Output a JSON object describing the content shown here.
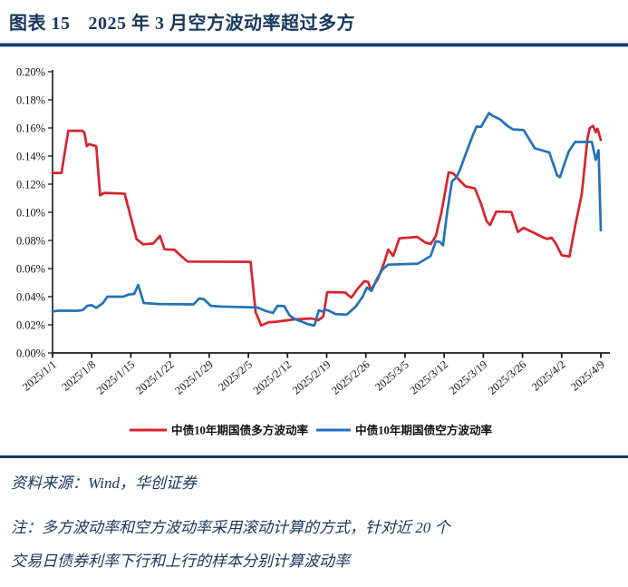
{
  "header": {
    "caption_label": "图表 15",
    "caption_title": "2025 年 3 月空方波动率超过多方"
  },
  "colors": {
    "title_navy": "#17375E",
    "rule_dark": "#1F3864",
    "rule_light": "#8FAADC",
    "axis_black": "#1a1a1a",
    "long_series_red": "#D9232B",
    "short_series_blue": "#2272B9"
  },
  "chart_data": {
    "type": "line",
    "title": "",
    "xlabel": "",
    "ylabel": "",
    "unit": "%",
    "grid": false,
    "legend_position": "bottom",
    "y_axis": {
      "min": 0.0,
      "max": 0.2,
      "step": 0.02,
      "tick_labels": [
        "0.00%",
        "0.02%",
        "0.04%",
        "0.06%",
        "0.08%",
        "0.10%",
        "0.12%",
        "0.14%",
        "0.16%",
        "0.18%",
        "0.20%"
      ]
    },
    "x_axis": {
      "tick_labels": [
        "2025/1/1",
        "2025/1/8",
        "2025/1/15",
        "2025/1/22",
        "2025/1/29",
        "2025/2/5",
        "2025/2/12",
        "2025/2/19",
        "2025/2/26",
        "2025/3/5",
        "2025/3/12",
        "2025/3/19",
        "2025/3/26",
        "2025/4/2",
        "2025/4/9"
      ],
      "tick_day_offsets": [
        0,
        7,
        14,
        21,
        28,
        35,
        42,
        49,
        56,
        63,
        70,
        77,
        84,
        91,
        98
      ],
      "day_span": 98
    },
    "series": [
      {
        "name": "中债10年期国债多方波动率",
        "color": "#D9232B",
        "points": [
          [
            0,
            0.128
          ],
          [
            1.6,
            0.128
          ],
          [
            2.8,
            0.158
          ],
          [
            5.3,
            0.158
          ],
          [
            5.7,
            0.1565
          ],
          [
            6.1,
            0.147
          ],
          [
            6.5,
            0.1485
          ],
          [
            7.8,
            0.147
          ],
          [
            8.5,
            0.112
          ],
          [
            9.2,
            0.1138
          ],
          [
            12.9,
            0.1132
          ],
          [
            15,
            0.081
          ],
          [
            16.2,
            0.0772
          ],
          [
            18,
            0.0778
          ],
          [
            19.2,
            0.0832
          ],
          [
            20,
            0.0737
          ],
          [
            21.8,
            0.0733
          ],
          [
            22.4,
            0.071
          ],
          [
            24.1,
            0.065
          ],
          [
            35.4,
            0.0648
          ],
          [
            36.3,
            0.029
          ],
          [
            37.3,
            0.0195
          ],
          [
            38.6,
            0.0218
          ],
          [
            40,
            0.0222
          ],
          [
            43,
            0.0238
          ],
          [
            46.3,
            0.0245
          ],
          [
            47.5,
            0.0232
          ],
          [
            48.4,
            0.026
          ],
          [
            49.1,
            0.0432
          ],
          [
            52.3,
            0.043
          ],
          [
            53.4,
            0.0393
          ],
          [
            54.5,
            0.0455
          ],
          [
            55.7,
            0.051
          ],
          [
            56.4,
            0.0505
          ],
          [
            56.9,
            0.0448
          ],
          [
            58.2,
            0.053
          ],
          [
            59.3,
            0.0645
          ],
          [
            60,
            0.0735
          ],
          [
            60.9,
            0.069
          ],
          [
            62,
            0.0815
          ],
          [
            65.2,
            0.0825
          ],
          [
            66.6,
            0.0785
          ],
          [
            67.6,
            0.0775
          ],
          [
            68.5,
            0.083
          ],
          [
            69.5,
            0.1
          ],
          [
            70.8,
            0.1284
          ],
          [
            71.6,
            0.1278
          ],
          [
            72.8,
            0.1226
          ],
          [
            73.8,
            0.1185
          ],
          [
            75.5,
            0.117
          ],
          [
            76.6,
            0.106
          ],
          [
            77.6,
            0.0935
          ],
          [
            78.2,
            0.091
          ],
          [
            79.3,
            0.1005
          ],
          [
            82,
            0.1002
          ],
          [
            83.2,
            0.086
          ],
          [
            84.2,
            0.089
          ],
          [
            86,
            0.0855
          ],
          [
            87.5,
            0.0825
          ],
          [
            88.4,
            0.081
          ],
          [
            89.2,
            0.082
          ],
          [
            90,
            0.0775
          ],
          [
            91,
            0.0695
          ],
          [
            92.4,
            0.0685
          ],
          [
            93.4,
            0.09
          ],
          [
            94.6,
            0.113
          ],
          [
            95.6,
            0.152
          ],
          [
            96,
            0.1598
          ],
          [
            96.6,
            0.1615
          ],
          [
            97.1,
            0.157
          ],
          [
            97.4,
            0.1595
          ],
          [
            98,
            0.1515
          ]
        ]
      },
      {
        "name": "中债10年期国债空方波动率",
        "color": "#2272B9",
        "points": [
          [
            0,
            0.0295
          ],
          [
            1,
            0.03
          ],
          [
            4.6,
            0.03
          ],
          [
            5.4,
            0.0305
          ],
          [
            6.2,
            0.0335
          ],
          [
            7,
            0.034
          ],
          [
            7.8,
            0.032
          ],
          [
            9,
            0.0355
          ],
          [
            9.8,
            0.04
          ],
          [
            12.6,
            0.04
          ],
          [
            13.6,
            0.0415
          ],
          [
            14.6,
            0.042
          ],
          [
            15.3,
            0.0484
          ],
          [
            16.3,
            0.0355
          ],
          [
            19,
            0.0348
          ],
          [
            25.2,
            0.0345
          ],
          [
            26.2,
            0.0387
          ],
          [
            27,
            0.0383
          ],
          [
            28.3,
            0.0335
          ],
          [
            30,
            0.033
          ],
          [
            36.6,
            0.0323
          ],
          [
            38,
            0.03
          ],
          [
            39.4,
            0.0284
          ],
          [
            40.2,
            0.0335
          ],
          [
            41.4,
            0.0333
          ],
          [
            42.4,
            0.0265
          ],
          [
            43.4,
            0.0239
          ],
          [
            44.6,
            0.0222
          ],
          [
            45.6,
            0.0205
          ],
          [
            46.8,
            0.0195
          ],
          [
            47.6,
            0.0303
          ],
          [
            48.2,
            0.0295
          ],
          [
            48.8,
            0.0308
          ],
          [
            49.4,
            0.03
          ],
          [
            50.6,
            0.0276
          ],
          [
            52.6,
            0.0272
          ],
          [
            54.2,
            0.033
          ],
          [
            55.4,
            0.0398
          ],
          [
            56.2,
            0.0465
          ],
          [
            57,
            0.044
          ],
          [
            58,
            0.053
          ],
          [
            59,
            0.0595
          ],
          [
            60,
            0.0628
          ],
          [
            65.3,
            0.0635
          ],
          [
            67.6,
            0.069
          ],
          [
            68.5,
            0.0795
          ],
          [
            69.2,
            0.079
          ],
          [
            69.8,
            0.0765
          ],
          [
            70.4,
            0.096
          ],
          [
            70.9,
            0.1095
          ],
          [
            71.4,
            0.122
          ],
          [
            72.2,
            0.1248
          ],
          [
            72.8,
            0.13
          ],
          [
            74,
            0.143
          ],
          [
            75.2,
            0.1555
          ],
          [
            75.8,
            0.161
          ],
          [
            76.6,
            0.1608
          ],
          [
            78,
            0.1705
          ],
          [
            78.6,
            0.1688
          ],
          [
            80,
            0.166
          ],
          [
            81.3,
            0.1615
          ],
          [
            82.3,
            0.159
          ],
          [
            84.2,
            0.1585
          ],
          [
            86.2,
            0.1455
          ],
          [
            88.8,
            0.1425
          ],
          [
            90.2,
            0.1262
          ],
          [
            90.7,
            0.125
          ],
          [
            91.5,
            0.1345
          ],
          [
            92.3,
            0.1435
          ],
          [
            93.4,
            0.15
          ],
          [
            96.4,
            0.15
          ],
          [
            97.1,
            0.1372
          ],
          [
            97.6,
            0.1442
          ],
          [
            98,
            0.0872
          ]
        ]
      }
    ]
  },
  "footer": {
    "source": "资料来源：Wind，华创证券",
    "note_line1": "注：多方波动率和空方波动率采用滚动计算的方式，针对近 20 个",
    "note_line2": "交易日债券利率下行和上行的样本分别计算波动率"
  }
}
